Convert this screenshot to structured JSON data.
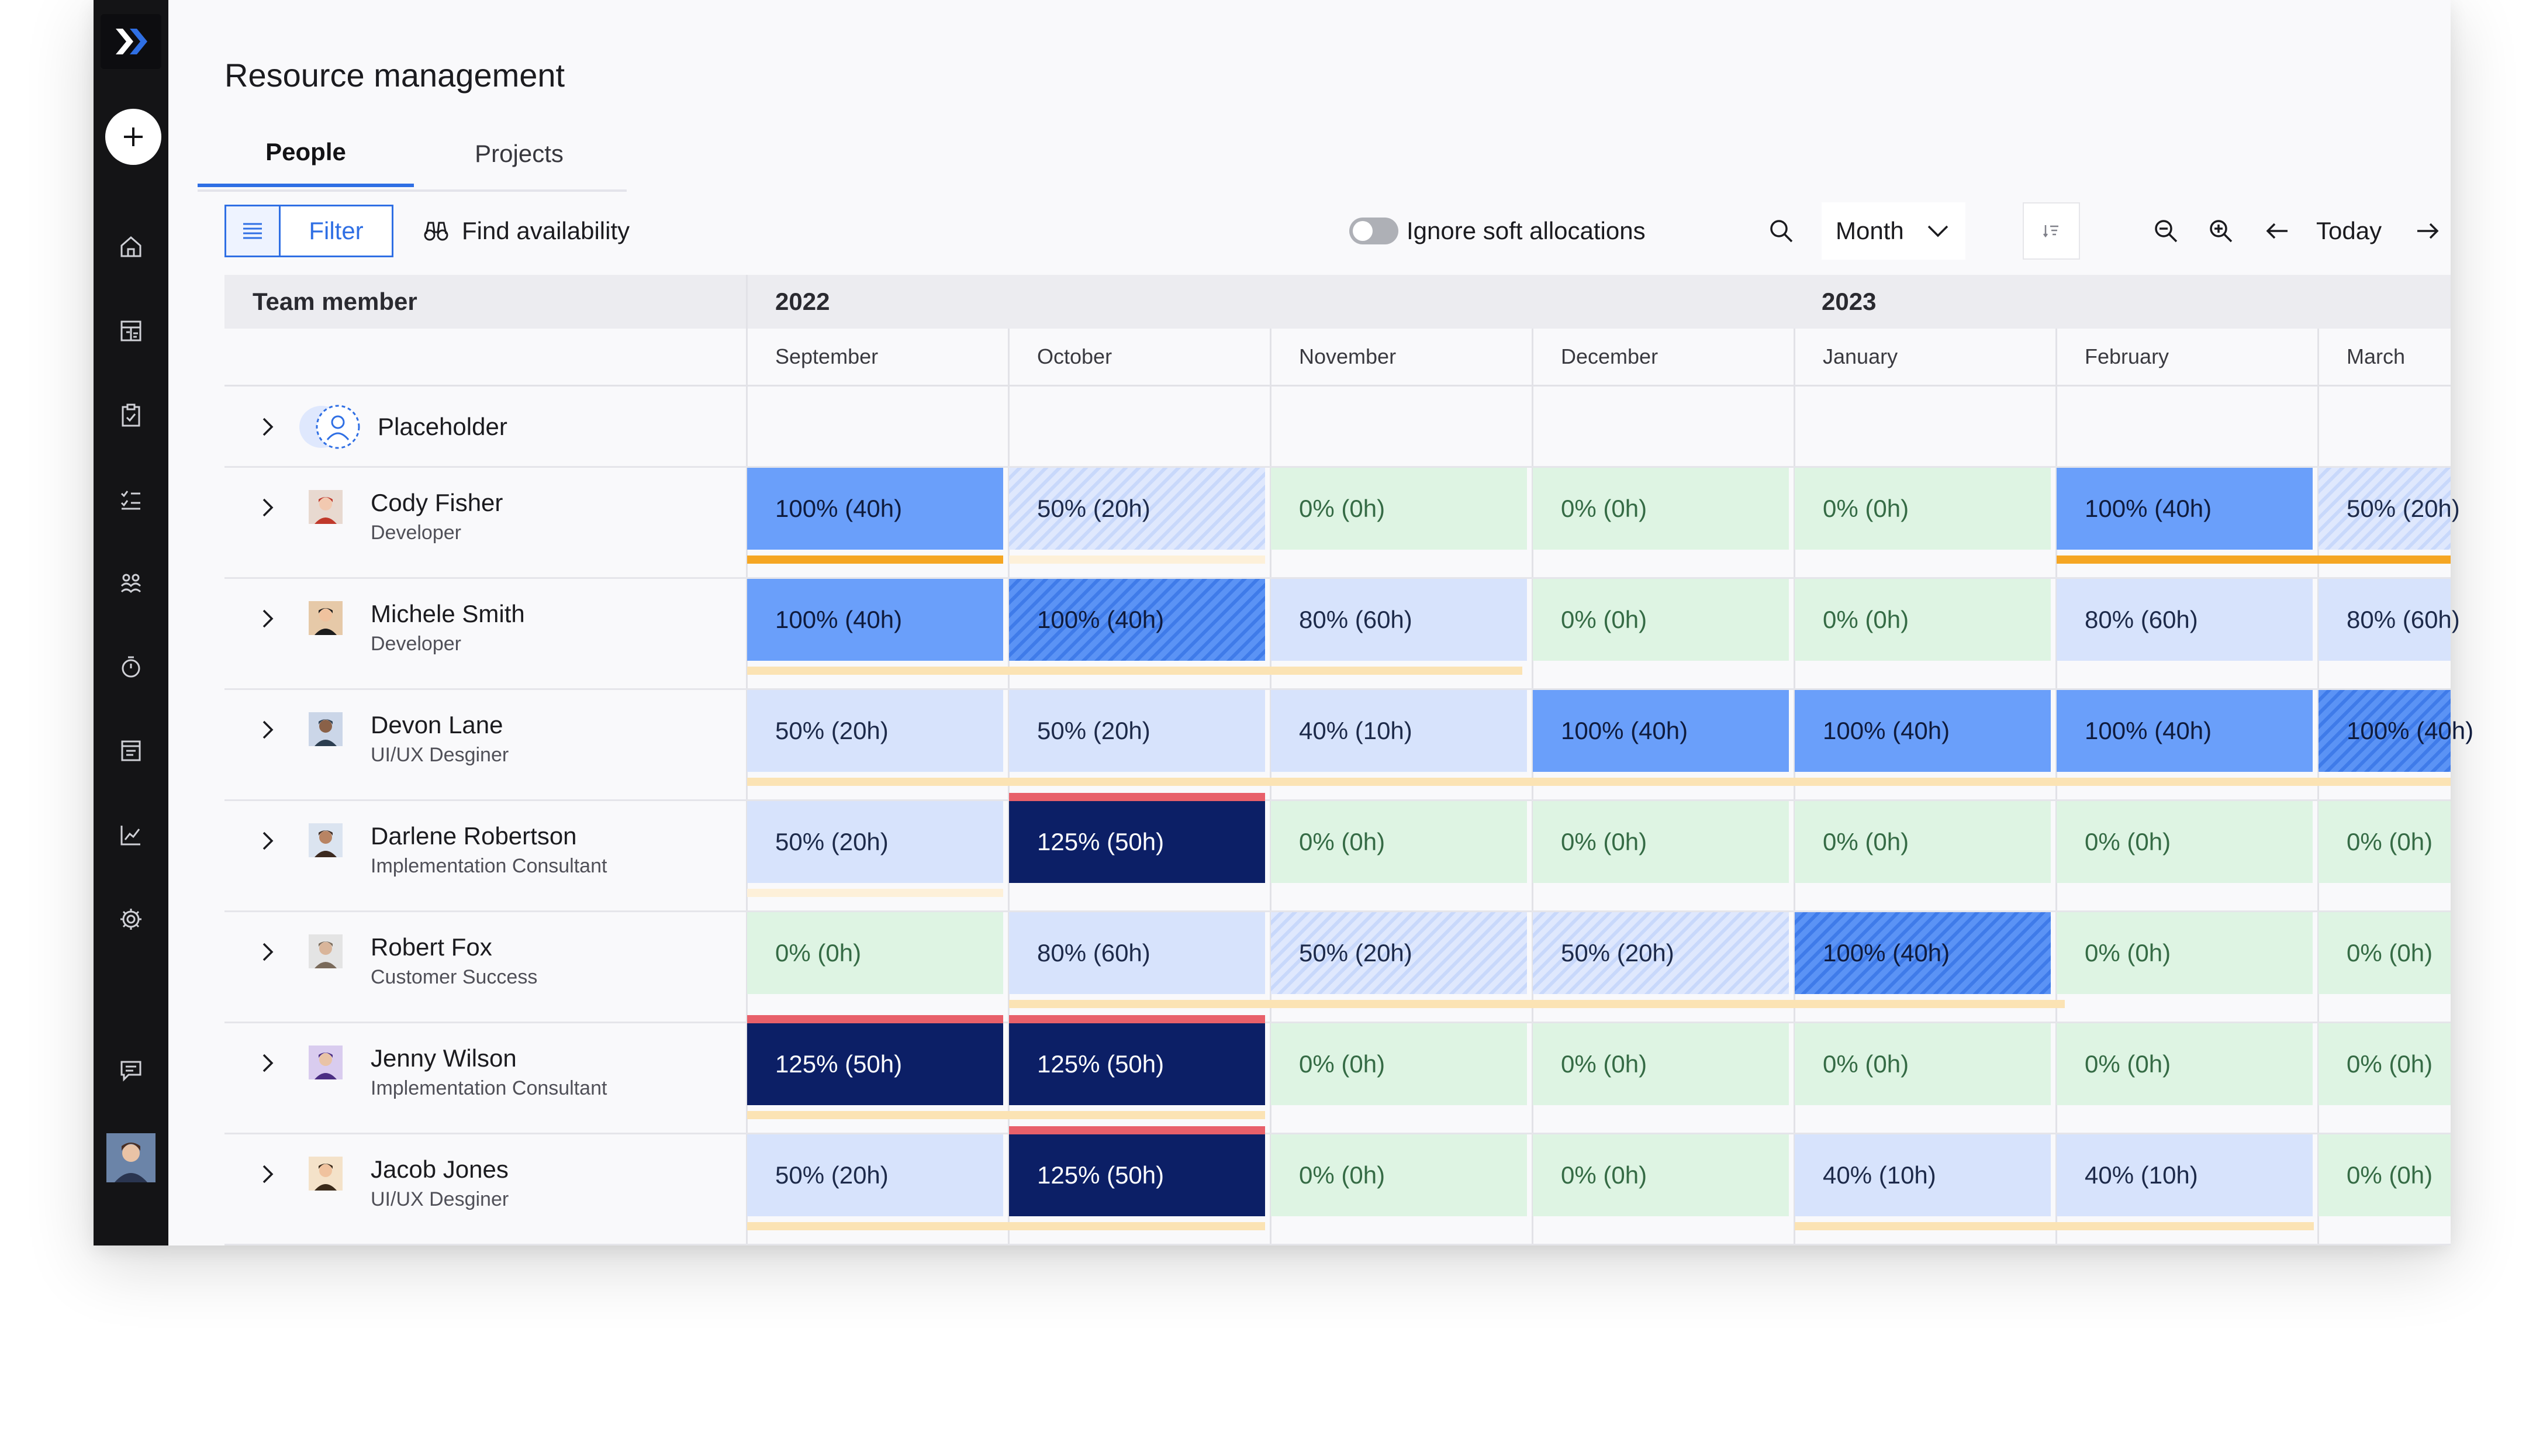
{
  "page": {
    "title": "Resource management"
  },
  "tabs": [
    {
      "label": "People",
      "active": true
    },
    {
      "label": "Projects",
      "active": false
    }
  ],
  "toolbar": {
    "filter_label": "Filter",
    "find_availability_label": "Find availability",
    "ignore_soft_label": "Ignore soft allocations",
    "ignore_soft_enabled": false,
    "view_select_value": "Month",
    "today_label": "Today"
  },
  "grid": {
    "member_header": "Team member",
    "years": [
      "2022",
      "2023"
    ],
    "months": [
      "September",
      "October",
      "November",
      "December",
      "January",
      "February",
      "March"
    ]
  },
  "placeholder": {
    "label": "Placeholder"
  },
  "members": [
    {
      "name": "Cody Fisher",
      "role": "Developer",
      "cells": [
        "100% (40h)",
        "50% (20h)",
        "0% (0h)",
        "0% (0h)",
        "0% (0h)",
        "100% (40h)",
        "50% (20h)"
      ]
    },
    {
      "name": "Michele Smith",
      "role": "Developer",
      "cells": [
        "100% (40h)",
        "100% (40h)",
        "80% (60h)",
        "0% (0h)",
        "0% (0h)",
        "80% (60h)",
        "80% (60h)"
      ]
    },
    {
      "name": "Devon Lane",
      "role": "UI/UX Desginer",
      "cells": [
        "50% (20h)",
        "50% (20h)",
        "40% (10h)",
        "100% (40h)",
        "100% (40h)",
        "100% (40h)",
        "100% (40h)"
      ]
    },
    {
      "name": "Darlene Robertson",
      "role": "Implementation Consultant",
      "cells": [
        "50% (20h)",
        "125% (50h)",
        "0% (0h)",
        "0% (0h)",
        "0% (0h)",
        "0% (0h)",
        "0% (0h)"
      ]
    },
    {
      "name": "Robert Fox",
      "role": "Customer Success",
      "cells": [
        "0% (0h)",
        "80% (60h)",
        "50% (20h)",
        "50% (20h)",
        "100% (40h)",
        "0% (0h)",
        "0% (0h)"
      ]
    },
    {
      "name": "Jenny Wilson",
      "role": "Implementation Consultant",
      "cells": [
        "125% (50h)",
        "125% (50h)",
        "0% (0h)",
        "0% (0h)",
        "0% (0h)",
        "0% (0h)",
        "0% (0h)"
      ]
    },
    {
      "name": "Jacob Jones",
      "role": "UI/UX Desginer",
      "cells": [
        "50% (20h)",
        "125% (50h)",
        "0% (0h)",
        "0% (0h)",
        "40% (10h)",
        "40% (10h)",
        "0% (0h)"
      ]
    }
  ],
  "colors": {
    "accent": "#2f6fe4",
    "full": "#6a9ffa",
    "partial": "#d7e3fc",
    "free": "#def4e3",
    "over": "#0c1f66",
    "over_flag": "#e8606a",
    "bar": "#f5a623"
  }
}
